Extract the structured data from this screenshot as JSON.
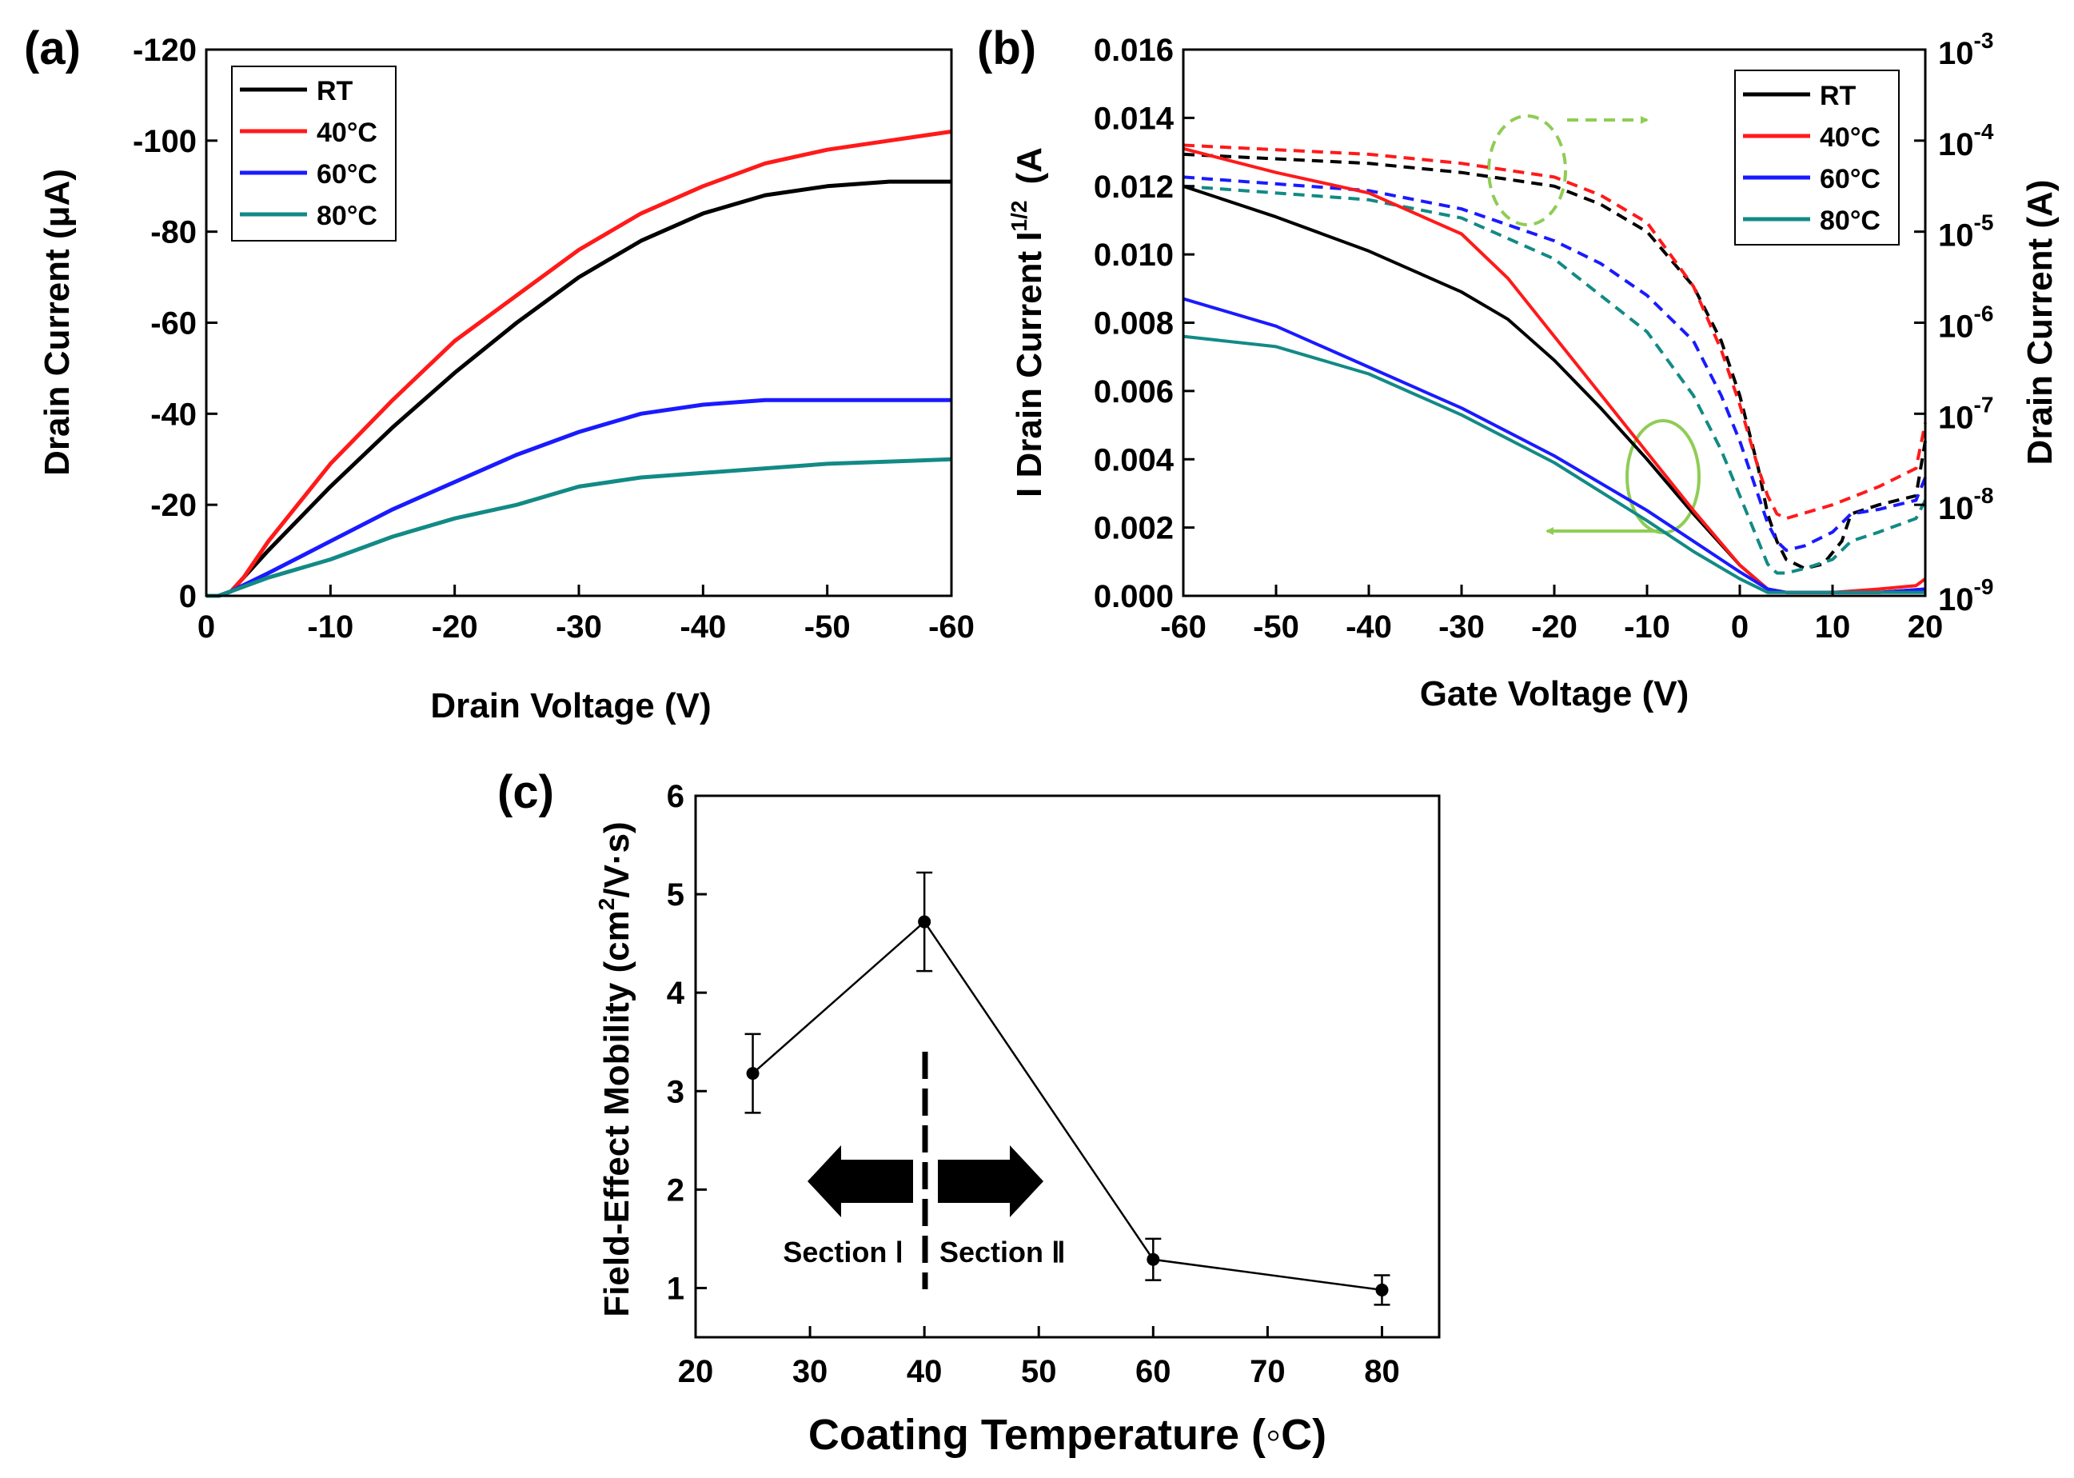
{
  "colors": {
    "RT": "#000000",
    "40C": "#ff1a1a",
    "60C": "#1a1aff",
    "80C": "#128a86",
    "annotation": "#8fcc55"
  },
  "chart_data": [
    {
      "panel": "(a)",
      "type": "line",
      "xlabel": "Drain Voltage (V)",
      "ylabel": "Drain Current (μA)",
      "xlim": [
        0,
        -60
      ],
      "ylim": [
        0,
        -120
      ],
      "x_ticks": [
        "0",
        "-10",
        "-20",
        "-30",
        "-40",
        "-50",
        "-60"
      ],
      "y_ticks": [
        "0",
        "-20",
        "-40",
        "-60",
        "-80",
        "-100",
        "-120"
      ],
      "legend": [
        "RT",
        "40°C",
        "60°C",
        "80°C"
      ],
      "legend_position": "top-left",
      "series": [
        {
          "name": "RT",
          "color_key": "RT",
          "x": [
            0,
            -1,
            -2,
            -3,
            -5,
            -10,
            -15,
            -20,
            -25,
            -30,
            -35,
            -40,
            -45,
            -50,
            -55,
            -60
          ],
          "y": [
            0,
            0,
            -1,
            -4,
            -10,
            -24,
            -37,
            -49,
            -60,
            -70,
            -78,
            -84,
            -88,
            -90,
            -91,
            -91
          ]
        },
        {
          "name": "40°C",
          "color_key": "40C",
          "x": [
            0,
            -1,
            -2,
            -3,
            -5,
            -10,
            -15,
            -20,
            -25,
            -30,
            -35,
            -40,
            -45,
            -50,
            -55,
            -60
          ],
          "y": [
            0,
            0,
            -1,
            -4,
            -12,
            -29,
            -43,
            -56,
            -66,
            -76,
            -84,
            -90,
            -95,
            -98,
            -100,
            -102
          ]
        },
        {
          "name": "60°C",
          "color_key": "60C",
          "x": [
            0,
            -1,
            -2,
            -5,
            -10,
            -15,
            -20,
            -25,
            -30,
            -35,
            -40,
            -45,
            -50,
            -55,
            -60
          ],
          "y": [
            0,
            0,
            -1,
            -5,
            -12,
            -19,
            -25,
            -31,
            -36,
            -40,
            -42,
            -43,
            -43,
            -43,
            -43
          ]
        },
        {
          "name": "80°C",
          "color_key": "80C",
          "x": [
            0,
            -1,
            -2,
            -5,
            -10,
            -15,
            -20,
            -25,
            -30,
            -35,
            -40,
            -45,
            -50,
            -55,
            -60
          ],
          "y": [
            0,
            0,
            -1,
            -4,
            -8,
            -13,
            -17,
            -20,
            -24,
            -26,
            -27,
            -28,
            -29,
            -29.5,
            -30
          ]
        }
      ]
    },
    {
      "panel": "(b)",
      "type": "line",
      "xlabel": "Gate Voltage (V)",
      "ylabel_left": "I Drain Current I",
      "ylabel_left_sup": "1/2",
      "ylabel_left_unit": "(A",
      "ylabel_right": "Drain Current (A)",
      "xlim": [
        -60,
        20
      ],
      "ylim_left": [
        0,
        0.016
      ],
      "ylim_right_log": [
        -9,
        -3
      ],
      "x_ticks": [
        "-60",
        "-50",
        "-40",
        "-30",
        "-20",
        "-10",
        "0",
        "10",
        "20"
      ],
      "y_ticks_left": [
        "0.000",
        "0.002",
        "0.004",
        "0.006",
        "0.008",
        "0.010",
        "0.012",
        "0.014",
        "0.016"
      ],
      "y_ticks_right_base": "10",
      "y_ticks_right_exp": [
        "-9",
        "-8",
        "-7",
        "-6",
        "-5",
        "-4",
        "-3"
      ],
      "legend": [
        "RT",
        "40°C",
        "60°C",
        "80°C"
      ],
      "legend_position": "top-right",
      "sqrt_series": [
        {
          "name": "RT",
          "color_key": "RT",
          "x": [
            -60,
            -50,
            -40,
            -30,
            -25,
            -20,
            -15,
            -10,
            -5,
            0,
            3,
            5,
            10,
            15,
            20
          ],
          "y": [
            0.012,
            0.0111,
            0.0101,
            0.0089,
            0.0081,
            0.0069,
            0.0055,
            0.004,
            0.0024,
            0.0009,
            0.0002,
            0.0001,
            0.0001,
            0.0001,
            0.0002
          ]
        },
        {
          "name": "40°C",
          "color_key": "40C",
          "x": [
            -60,
            -50,
            -40,
            -30,
            -25,
            -20,
            -15,
            -10,
            -5,
            0,
            3,
            5,
            10,
            15,
            19,
            20
          ],
          "y": [
            0.0131,
            0.0124,
            0.0118,
            0.0106,
            0.0093,
            0.0076,
            0.0059,
            0.0042,
            0.0025,
            0.0009,
            0.0002,
            0.0001,
            0.0001,
            0.0002,
            0.0003,
            0.0005
          ]
        },
        {
          "name": "60°C",
          "color_key": "60C",
          "x": [
            -60,
            -50,
            -40,
            -30,
            -20,
            -10,
            -5,
            0,
            3,
            5,
            10,
            15,
            20
          ],
          "y": [
            0.0087,
            0.0079,
            0.0067,
            0.0055,
            0.0041,
            0.0025,
            0.0016,
            0.0007,
            0.0002,
            0.0001,
            0.0001,
            0.0001,
            0.0002
          ]
        },
        {
          "name": "80°C",
          "color_key": "80C",
          "x": [
            -60,
            -50,
            -40,
            -30,
            -20,
            -10,
            -5,
            0,
            3,
            5,
            10,
            15,
            20
          ],
          "y": [
            0.0076,
            0.0073,
            0.0065,
            0.0053,
            0.0039,
            0.0022,
            0.0013,
            0.0005,
            0.0001,
            0.0001,
            0.0001,
            0.0001,
            0.0001
          ]
        }
      ],
      "log_series": [
        {
          "name": "RT",
          "color_key": "RT",
          "x": [
            -60,
            -40,
            -30,
            -20,
            -15,
            -10,
            -5,
            -2,
            0,
            2,
            3,
            4,
            5,
            7,
            9,
            11,
            12,
            15,
            19,
            20
          ],
          "log_y": [
            -4.15,
            -4.25,
            -4.35,
            -4.5,
            -4.7,
            -5.0,
            -5.6,
            -6.2,
            -6.8,
            -7.6,
            -8.1,
            -8.4,
            -8.6,
            -8.7,
            -8.65,
            -8.4,
            -8.1,
            -8.0,
            -7.9,
            -7.3
          ]
        },
        {
          "name": "40°C",
          "color_key": "40C",
          "x": [
            -60,
            -40,
            -30,
            -20,
            -15,
            -10,
            -5,
            -2,
            0,
            2,
            3,
            4,
            5,
            10,
            15,
            19,
            20
          ],
          "log_y": [
            -4.05,
            -4.15,
            -4.25,
            -4.4,
            -4.6,
            -4.9,
            -5.6,
            -6.3,
            -6.9,
            -7.6,
            -7.9,
            -8.1,
            -8.15,
            -8.0,
            -7.8,
            -7.6,
            -7.1
          ]
        },
        {
          "name": "60°C",
          "color_key": "60C",
          "x": [
            -60,
            -40,
            -30,
            -20,
            -15,
            -10,
            -5,
            -2,
            0,
            2,
            3,
            4,
            5,
            7,
            10,
            12,
            15,
            19,
            20
          ],
          "log_y": [
            -4.4,
            -4.55,
            -4.75,
            -5.1,
            -5.35,
            -5.7,
            -6.2,
            -6.8,
            -7.3,
            -7.9,
            -8.2,
            -8.4,
            -8.5,
            -8.45,
            -8.3,
            -8.1,
            -8.05,
            -7.95,
            -7.7
          ]
        },
        {
          "name": "80°C",
          "color_key": "80C",
          "x": [
            -60,
            -40,
            -30,
            -20,
            -15,
            -10,
            -5,
            -2,
            0,
            2,
            3,
            4,
            5,
            7,
            10,
            12,
            15,
            19,
            20
          ],
          "log_y": [
            -4.5,
            -4.65,
            -4.85,
            -5.3,
            -5.7,
            -6.1,
            -6.8,
            -7.4,
            -7.9,
            -8.4,
            -8.65,
            -8.75,
            -8.75,
            -8.7,
            -8.6,
            -8.4,
            -8.3,
            -8.15,
            -7.95
          ]
        }
      ],
      "annotations": [
        "dashed ellipse with arrow pointing right (log axis)",
        "solid ellipse with arrow pointing left (linear axis)"
      ]
    },
    {
      "panel": "(c)",
      "type": "line",
      "xlabel": "Coating Temperature (◦C)",
      "ylabel": "Field-Effect Mobility (cm",
      "ylabel_sup": "2",
      "ylabel_unit": "/V·s)",
      "xlim": [
        20,
        85
      ],
      "ylim": [
        0.5,
        6
      ],
      "x_ticks": [
        "20",
        "30",
        "40",
        "50",
        "60",
        "70",
        "80"
      ],
      "y_ticks": [
        "1",
        "2",
        "3",
        "4",
        "5",
        "6"
      ],
      "series": [
        {
          "name": "mobility",
          "x": [
            25,
            40,
            60,
            80
          ],
          "y": [
            3.18,
            4.72,
            1.29,
            0.98
          ],
          "err": [
            0.4,
            0.5,
            0.21,
            0.15
          ]
        }
      ],
      "divider_x": 40,
      "section_labels": [
        "Section Ⅰ",
        "Section Ⅱ"
      ]
    }
  ]
}
